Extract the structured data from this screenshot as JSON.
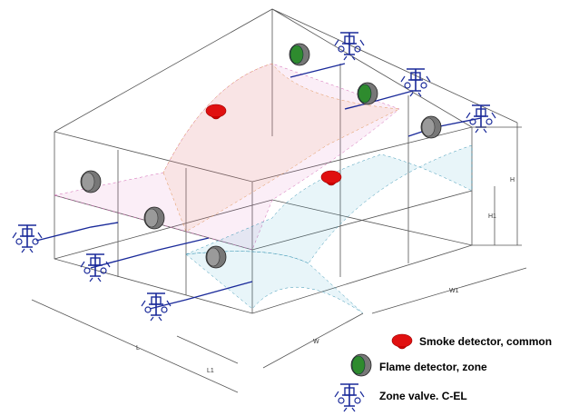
{
  "legend": [
    {
      "label": "Smoke detector, common"
    },
    {
      "label": "Flame detector, zone"
    },
    {
      "label": "Zone valve. C-EL"
    }
  ],
  "dimensions": [
    "L",
    "L1",
    "W",
    "W1",
    "H",
    "H1"
  ]
}
